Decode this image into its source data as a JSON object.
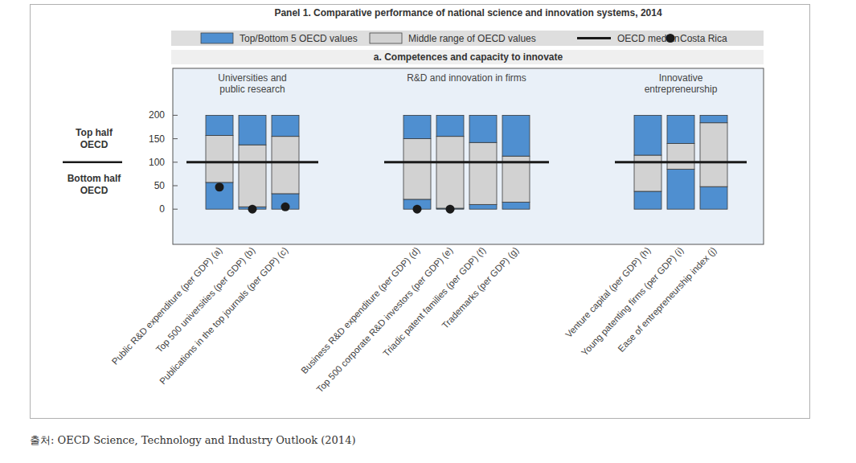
{
  "chart_data": {
    "type": "bar",
    "stacked": true,
    "title": "Panel 1. Comparative performance of national science and innovation systems, 2014",
    "subtitle": "a. Competences and capacity to innovate",
    "source": "출처: OECD Science, Technology and Industry Outlook (2014)",
    "categories": [
      "Public R&D expenditure (per GDP) (a)",
      "Top 500 universities (per GDP) (b)",
      "Publications in the top journals (per GDP) (c)",
      null,
      null,
      null,
      "Business R&D expenditure (per GDP) (d)",
      "Top 500 corporate R&D investors (per GDP) (e)",
      "Triadic patent families (per GDP) (f)",
      "Trademarks (per GDP) (g)",
      null,
      null,
      null,
      "Venture capital (per GDP) (h)",
      "Young patenting firms (per GDP) (i)",
      "Ease of entrepreneurship index (j)"
    ],
    "group_labels": [
      [
        "Universities and",
        "public research"
      ],
      [
        "R&D and innovation in firms"
      ],
      [
        "Innovative",
        "entrepreneurship"
      ]
    ],
    "side_labels": {
      "top": [
        "Top half",
        "OECD"
      ],
      "bottom": [
        "Bottom half",
        "OECD"
      ]
    },
    "series": [
      {
        "name": "Top/Bottom 5 OECD values",
        "color": "#4f8fd0",
        "values": [
          57,
          5,
          33,
          null,
          null,
          null,
          21,
          2,
          10,
          15,
          null,
          null,
          null,
          38,
          85,
          48
        ]
      },
      {
        "name": "Middle range of OECD values",
        "color": "#d2d2d2",
        "values": [
          100,
          132,
          122,
          null,
          null,
          null,
          129,
          153,
          132,
          98,
          null,
          null,
          null,
          77,
          55,
          136
        ]
      },
      {
        "name": "Top/Bottom 5 OECD values",
        "color": "#4f8fd0",
        "values": [
          43,
          63,
          45,
          null,
          null,
          null,
          50,
          45,
          58,
          87,
          null,
          null,
          null,
          85,
          60,
          16
        ]
      },
      {
        "name": "OECD median",
        "type": "line",
        "color": "#1a1a1a",
        "values": [
          100,
          100,
          100,
          null,
          null,
          null,
          100,
          100,
          100,
          100,
          null,
          null,
          null,
          100,
          100,
          100
        ]
      },
      {
        "name": "Costa Rica",
        "type": "scatter",
        "marker": "circle",
        "color": "#1a1a1a",
        "values": [
          47,
          0,
          5,
          null,
          null,
          null,
          0,
          0,
          null,
          null,
          null,
          null,
          null,
          null,
          null,
          null
        ]
      }
    ],
    "ylim": [
      -75,
      300
    ],
    "yticks": [
      0,
      50,
      100,
      150,
      200
    ],
    "grid": false,
    "legend": "top"
  }
}
